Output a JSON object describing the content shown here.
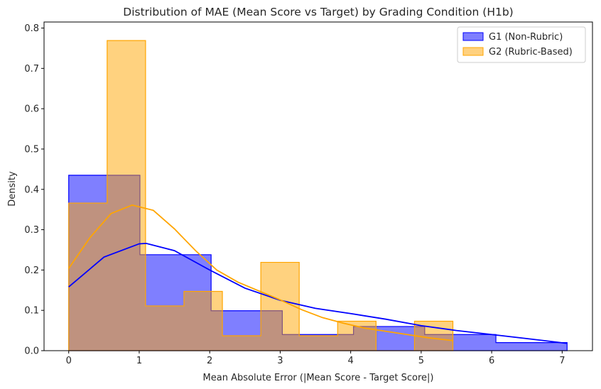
{
  "chart_data": {
    "type": "histogram",
    "title": "Distribution of MAE (Mean Score vs Target) by Grading Condition (H1b)",
    "xlabel": "Mean Absolute Error (|Mean Score - Target Score|)",
    "ylabel": "Density",
    "xlim": [
      -0.35,
      7.43
    ],
    "ylim": [
      0,
      0.815
    ],
    "xticks": [
      0,
      1,
      2,
      3,
      4,
      5,
      6,
      7
    ],
    "yticks": [
      0.0,
      0.1,
      0.2,
      0.3,
      0.4,
      0.5,
      0.6,
      0.7,
      0.8
    ],
    "ytick_labels": [
      "0.0",
      "0.1",
      "0.2",
      "0.3",
      "0.4",
      "0.5",
      "0.6",
      "0.7",
      "0.8"
    ],
    "legend_position": "top-right",
    "series": [
      {
        "name": "G1 (Non-Rubric)",
        "color": "#0000ff",
        "fill": "#7f7ffe",
        "bin_edges": [
          0,
          1.01,
          2.02,
          3.03,
          4.04,
          5.05,
          6.06,
          7.07
        ],
        "densities": [
          0.435,
          0.238,
          0.099,
          0.04,
          0.06,
          0.04,
          0.02
        ],
        "kde": {
          "x": [
            0,
            0.5,
            1.0,
            1.1,
            1.5,
            2.0,
            2.5,
            3.0,
            3.5,
            4.0,
            4.5,
            5.0,
            5.5,
            6.0,
            6.5,
            7.07
          ],
          "y": [
            0.158,
            0.232,
            0.265,
            0.266,
            0.248,
            0.2,
            0.155,
            0.125,
            0.105,
            0.092,
            0.078,
            0.062,
            0.05,
            0.04,
            0.03,
            0.018
          ]
        }
      },
      {
        "name": "G2 (Rubric-Based)",
        "color": "#ffa500",
        "fill": "#ffd17f",
        "bin_edges": [
          0,
          0.545,
          1.09,
          1.635,
          2.18,
          2.725,
          3.27,
          3.815,
          4.36,
          4.905,
          5.45
        ],
        "densities": [
          0.366,
          0.769,
          0.111,
          0.147,
          0.037,
          0.219,
          0.037,
          0.073,
          0.0,
          0.073
        ],
        "kde": {
          "x": [
            0,
            0.3,
            0.6,
            0.9,
            1.2,
            1.5,
            1.8,
            2.1,
            2.4,
            2.7,
            3.0,
            3.3,
            3.6,
            3.9,
            4.2,
            4.5,
            4.8,
            5.1,
            5.45
          ],
          "y": [
            0.204,
            0.28,
            0.34,
            0.361,
            0.348,
            0.302,
            0.248,
            0.2,
            0.17,
            0.148,
            0.126,
            0.102,
            0.082,
            0.068,
            0.056,
            0.048,
            0.04,
            0.032,
            0.025
          ]
        }
      }
    ]
  }
}
